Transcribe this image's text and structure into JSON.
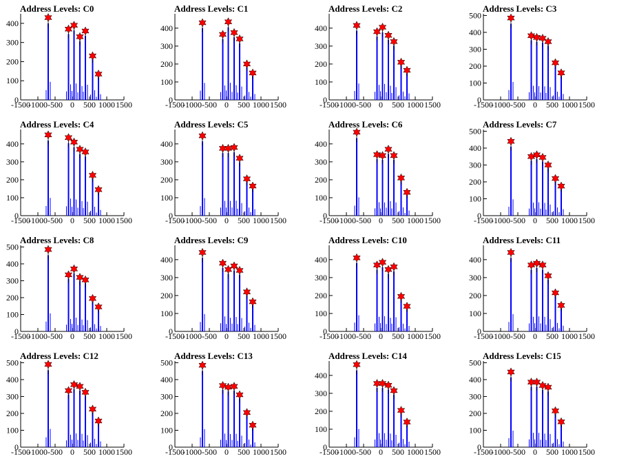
{
  "chart_data": [
    {
      "type": "histogram",
      "title": "Address Levels: C0",
      "xlim": [
        -1500,
        1500
      ],
      "ylim": [
        0,
        450
      ],
      "yticks": [
        0,
        100,
        200,
        300,
        400
      ],
      "xticks": [
        -1500,
        -1000,
        -500,
        0,
        500,
        1000,
        1500
      ],
      "peaks": [
        {
          "x": -700,
          "y": 430
        },
        {
          "x": -110,
          "y": 370
        },
        {
          "x": 50,
          "y": 390
        },
        {
          "x": 220,
          "y": 330
        },
        {
          "x": 380,
          "y": 360
        },
        {
          "x": 590,
          "y": 230
        },
        {
          "x": 760,
          "y": 135
        }
      ]
    },
    {
      "type": "histogram",
      "title": "Address Levels: C1",
      "xlim": [
        -1500,
        1500
      ],
      "ylim": [
        0,
        480
      ],
      "yticks": [
        0,
        100,
        200,
        300,
        400
      ],
      "xticks": [
        -1500,
        -1000,
        -500,
        0,
        500,
        1000,
        1500
      ],
      "peaks": [
        {
          "x": -700,
          "y": 430
        },
        {
          "x": -110,
          "y": 365
        },
        {
          "x": 50,
          "y": 435
        },
        {
          "x": 220,
          "y": 375
        },
        {
          "x": 380,
          "y": 340
        },
        {
          "x": 590,
          "y": 200
        },
        {
          "x": 760,
          "y": 150
        }
      ]
    },
    {
      "type": "histogram",
      "title": "Address Levels: C2",
      "xlim": [
        -1500,
        1500
      ],
      "ylim": [
        0,
        480
      ],
      "yticks": [
        0,
        100,
        200,
        300,
        400
      ],
      "xticks": [
        -1500,
        -1000,
        -500,
        0,
        500,
        1000,
        1500
      ],
      "peaks": [
        {
          "x": -700,
          "y": 415
        },
        {
          "x": -110,
          "y": 380
        },
        {
          "x": 50,
          "y": 405
        },
        {
          "x": 220,
          "y": 360
        },
        {
          "x": 380,
          "y": 325
        },
        {
          "x": 590,
          "y": 210
        },
        {
          "x": 760,
          "y": 165
        }
      ]
    },
    {
      "type": "histogram",
      "title": "Address Levels: C3",
      "xlim": [
        -1500,
        1500
      ],
      "ylim": [
        0,
        510
      ],
      "yticks": [
        0,
        100,
        200,
        300,
        400,
        500
      ],
      "xticks": [
        -1500,
        -1000,
        -500,
        0,
        500,
        1000,
        1500
      ],
      "peaks": [
        {
          "x": -700,
          "y": 485
        },
        {
          "x": -110,
          "y": 380
        },
        {
          "x": 50,
          "y": 370
        },
        {
          "x": 220,
          "y": 365
        },
        {
          "x": 380,
          "y": 345
        },
        {
          "x": 590,
          "y": 220
        },
        {
          "x": 760,
          "y": 160
        }
      ]
    },
    {
      "type": "histogram",
      "title": "Address Levels: C4",
      "xlim": [
        -1500,
        1500
      ],
      "ylim": [
        0,
        480
      ],
      "yticks": [
        0,
        100,
        200,
        300,
        400
      ],
      "xticks": [
        -1500,
        -1000,
        -500,
        0,
        500,
        1000,
        1500
      ],
      "peaks": [
        {
          "x": -700,
          "y": 450
        },
        {
          "x": -110,
          "y": 435
        },
        {
          "x": 50,
          "y": 410
        },
        {
          "x": 220,
          "y": 370
        },
        {
          "x": 380,
          "y": 355
        },
        {
          "x": 590,
          "y": 225
        },
        {
          "x": 760,
          "y": 145
        }
      ]
    },
    {
      "type": "histogram",
      "title": "Address Levels: C5",
      "xlim": [
        -1500,
        1500
      ],
      "ylim": [
        0,
        480
      ],
      "yticks": [
        0,
        100,
        200,
        300,
        400
      ],
      "xticks": [
        -1500,
        -1000,
        -500,
        0,
        500,
        1000,
        1500
      ],
      "peaks": [
        {
          "x": -700,
          "y": 445
        },
        {
          "x": -110,
          "y": 375
        },
        {
          "x": 50,
          "y": 375
        },
        {
          "x": 220,
          "y": 380
        },
        {
          "x": 380,
          "y": 320
        },
        {
          "x": 590,
          "y": 205
        },
        {
          "x": 760,
          "y": 165
        }
      ]
    },
    {
      "type": "histogram",
      "title": "Address Levels: C6",
      "xlim": [
        -1500,
        1500
      ],
      "ylim": [
        0,
        480
      ],
      "yticks": [
        0,
        100,
        200,
        300,
        400
      ],
      "xticks": [
        -1500,
        -1000,
        -500,
        0,
        500,
        1000,
        1500
      ],
      "peaks": [
        {
          "x": -700,
          "y": 465
        },
        {
          "x": -110,
          "y": 340
        },
        {
          "x": 50,
          "y": 335
        },
        {
          "x": 220,
          "y": 370
        },
        {
          "x": 380,
          "y": 335
        },
        {
          "x": 590,
          "y": 210
        },
        {
          "x": 760,
          "y": 130
        }
      ]
    },
    {
      "type": "histogram",
      "title": "Address Levels: C7",
      "xlim": [
        -1500,
        1500
      ],
      "ylim": [
        0,
        510
      ],
      "yticks": [
        0,
        100,
        200,
        300,
        400,
        500
      ],
      "xticks": [
        -1500,
        -1000,
        -500,
        0,
        500,
        1000,
        1500
      ],
      "peaks": [
        {
          "x": -700,
          "y": 440
        },
        {
          "x": -110,
          "y": 350
        },
        {
          "x": 50,
          "y": 360
        },
        {
          "x": 220,
          "y": 345
        },
        {
          "x": 380,
          "y": 300
        },
        {
          "x": 590,
          "y": 220
        },
        {
          "x": 760,
          "y": 175
        }
      ]
    },
    {
      "type": "histogram",
      "title": "Address Levels: C8",
      "xlim": [
        -1500,
        1500
      ],
      "ylim": [
        0,
        510
      ],
      "yticks": [
        0,
        100,
        200,
        300,
        400,
        500
      ],
      "xticks": [
        -1500,
        -1000,
        -500,
        0,
        500,
        1000,
        1500
      ],
      "peaks": [
        {
          "x": -700,
          "y": 485
        },
        {
          "x": -110,
          "y": 335
        },
        {
          "x": 50,
          "y": 370
        },
        {
          "x": 220,
          "y": 320
        },
        {
          "x": 380,
          "y": 305
        },
        {
          "x": 590,
          "y": 195
        },
        {
          "x": 760,
          "y": 145
        }
      ]
    },
    {
      "type": "histogram",
      "title": "Address Levels: C9",
      "xlim": [
        -1500,
        1500
      ],
      "ylim": [
        0,
        480
      ],
      "yticks": [
        0,
        100,
        200,
        300,
        400
      ],
      "xticks": [
        -1500,
        -1000,
        -500,
        0,
        500,
        1000,
        1500
      ],
      "peaks": [
        {
          "x": -700,
          "y": 440
        },
        {
          "x": -110,
          "y": 380
        },
        {
          "x": 50,
          "y": 345
        },
        {
          "x": 220,
          "y": 365
        },
        {
          "x": 380,
          "y": 340
        },
        {
          "x": 590,
          "y": 220
        },
        {
          "x": 760,
          "y": 165
        }
      ]
    },
    {
      "type": "histogram",
      "title": "Address Levels: C10",
      "xlim": [
        -1500,
        1500
      ],
      "ylim": [
        0,
        480
      ],
      "yticks": [
        0,
        100,
        200,
        300,
        400
      ],
      "xticks": [
        -1500,
        -1000,
        -500,
        0,
        500,
        1000,
        1500
      ],
      "peaks": [
        {
          "x": -700,
          "y": 410
        },
        {
          "x": -110,
          "y": 370
        },
        {
          "x": 50,
          "y": 385
        },
        {
          "x": 220,
          "y": 345
        },
        {
          "x": 380,
          "y": 360
        },
        {
          "x": 590,
          "y": 195
        },
        {
          "x": 760,
          "y": 140
        }
      ]
    },
    {
      "type": "histogram",
      "title": "Address Levels: C11",
      "xlim": [
        -1500,
        1500
      ],
      "ylim": [
        0,
        480
      ],
      "yticks": [
        0,
        100,
        200,
        300,
        400
      ],
      "xticks": [
        -1500,
        -1000,
        -500,
        0,
        500,
        1000,
        1500
      ],
      "peaks": [
        {
          "x": -700,
          "y": 440
        },
        {
          "x": -110,
          "y": 370
        },
        {
          "x": 50,
          "y": 380
        },
        {
          "x": 220,
          "y": 370
        },
        {
          "x": 380,
          "y": 310
        },
        {
          "x": 590,
          "y": 215
        },
        {
          "x": 760,
          "y": 145
        }
      ]
    },
    {
      "type": "histogram",
      "title": "Address Levels: C12",
      "xlim": [
        -1500,
        1500
      ],
      "ylim": [
        0,
        510
      ],
      "yticks": [
        0,
        100,
        200,
        300,
        400,
        500
      ],
      "xticks": [
        -1500,
        -1000,
        -500,
        0,
        500,
        1000,
        1500
      ],
      "peaks": [
        {
          "x": -700,
          "y": 490
        },
        {
          "x": -110,
          "y": 335
        },
        {
          "x": 50,
          "y": 370
        },
        {
          "x": 220,
          "y": 360
        },
        {
          "x": 380,
          "y": 325
        },
        {
          "x": 590,
          "y": 225
        },
        {
          "x": 760,
          "y": 155
        }
      ]
    },
    {
      "type": "histogram",
      "title": "Address Levels: C13",
      "xlim": [
        -1500,
        1500
      ],
      "ylim": [
        0,
        510
      ],
      "yticks": [
        0,
        100,
        200,
        300,
        400,
        500
      ],
      "xticks": [
        -1500,
        -1000,
        -500,
        0,
        500,
        1000,
        1500
      ],
      "peaks": [
        {
          "x": -700,
          "y": 485
        },
        {
          "x": -110,
          "y": 365
        },
        {
          "x": 50,
          "y": 355
        },
        {
          "x": 220,
          "y": 360
        },
        {
          "x": 380,
          "y": 310
        },
        {
          "x": 590,
          "y": 205
        },
        {
          "x": 760,
          "y": 130
        }
      ]
    },
    {
      "type": "histogram",
      "title": "Address Levels: C14",
      "xlim": [
        -1500,
        1500
      ],
      "ylim": [
        0,
        480
      ],
      "yticks": [
        0,
        100,
        200,
        300,
        400
      ],
      "xticks": [
        -1500,
        -1000,
        -500,
        0,
        500,
        1000,
        1500
      ],
      "peaks": [
        {
          "x": -700,
          "y": 460
        },
        {
          "x": -110,
          "y": 355
        },
        {
          "x": 50,
          "y": 355
        },
        {
          "x": 220,
          "y": 345
        },
        {
          "x": 380,
          "y": 315
        },
        {
          "x": 590,
          "y": 205
        },
        {
          "x": 760,
          "y": 140
        }
      ]
    },
    {
      "type": "histogram",
      "title": "Address Levels: C15",
      "xlim": [
        -1500,
        1500
      ],
      "ylim": [
        0,
        510
      ],
      "yticks": [
        0,
        100,
        200,
        300,
        400,
        500
      ],
      "xticks": [
        -1500,
        -1000,
        -500,
        0,
        500,
        1000,
        1500
      ],
      "peaks": [
        {
          "x": -700,
          "y": 445
        },
        {
          "x": -110,
          "y": 385
        },
        {
          "x": 50,
          "y": 385
        },
        {
          "x": 220,
          "y": 365
        },
        {
          "x": 380,
          "y": 355
        },
        {
          "x": 590,
          "y": 215
        },
        {
          "x": 760,
          "y": 150
        }
      ]
    }
  ],
  "colors": {
    "bars": "#0000ff",
    "markers": "#ff0000",
    "marker_outline": "#000000",
    "axes": "#000000"
  }
}
